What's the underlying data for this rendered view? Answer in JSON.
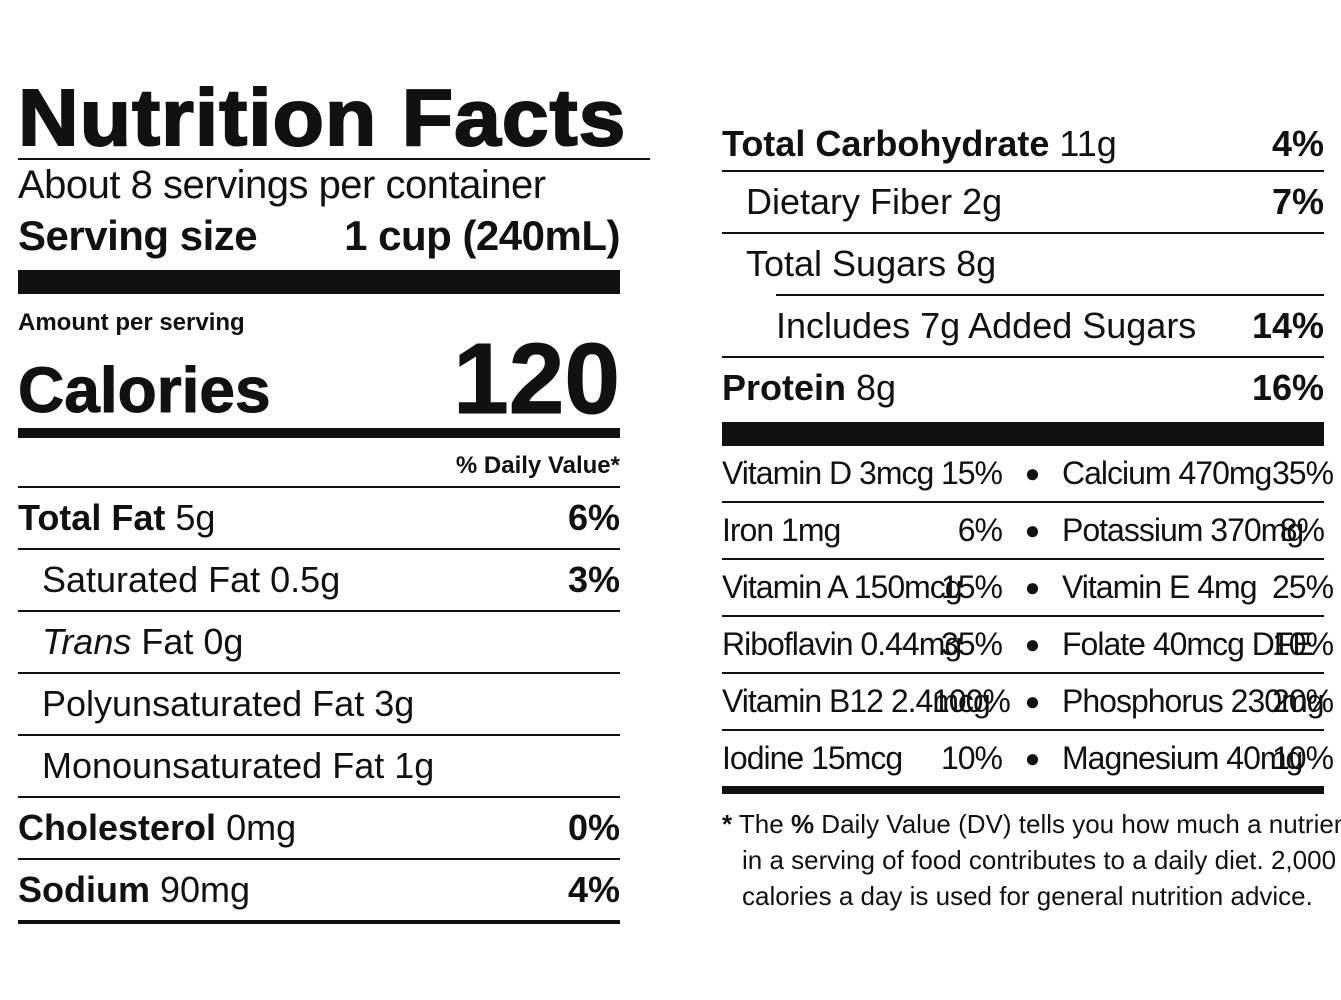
{
  "title": "Nutrition Facts",
  "servings_per_container": "About 8 servings per container",
  "serving_size": {
    "label": "Serving size",
    "value": "1 cup (240mL)"
  },
  "amount_per_serving": "Amount per serving",
  "calories": {
    "label": "Calories",
    "value": "120"
  },
  "daily_value_header": "% Daily Value*",
  "left_rows": [
    {
      "name": "Total Fat",
      "amount": "5g",
      "pct": "6%"
    },
    {
      "name": "Saturated Fat",
      "amount": "0.5g",
      "pct": "3%"
    },
    {
      "name": "Trans",
      "amount": "Fat 0g",
      "pct": ""
    },
    {
      "name": "Polyunsaturated Fat",
      "amount": "3g",
      "pct": ""
    },
    {
      "name": "Monounsaturated Fat",
      "amount": "1g",
      "pct": ""
    },
    {
      "name": "Cholesterol",
      "amount": "0mg",
      "pct": "0%"
    },
    {
      "name": "Sodium",
      "amount": "90mg",
      "pct": "4%"
    }
  ],
  "right_rows": [
    {
      "name": "Total Carbohydrate",
      "amount": "11g",
      "pct": "4%"
    },
    {
      "name": "Dietary Fiber",
      "amount": "2g",
      "pct": "7%"
    },
    {
      "name": "Total Sugars",
      "amount": "8g",
      "pct": ""
    },
    {
      "name": "Includes 7g Added Sugars",
      "amount": "",
      "pct": "14%"
    },
    {
      "name": "Protein",
      "amount": "8g",
      "pct": "16%"
    }
  ],
  "vitamins": [
    {
      "a_name": "Vitamin D 3mcg",
      "a_pct": "15%",
      "b_name": "Calcium 470mg",
      "b_pct": "35%"
    },
    {
      "a_name": "Iron 1mg",
      "a_pct": "6%",
      "b_name": "Potassium 370mg",
      "b_pct": "8%"
    },
    {
      "a_name": "Vitamin A 150mcg",
      "a_pct": "15%",
      "b_name": "Vitamin E 4mg",
      "b_pct": "25%"
    },
    {
      "a_name": "Riboflavin 0.44mg",
      "a_pct": "35%",
      "b_name": "Folate 40mcg DFE",
      "b_pct": "10%"
    },
    {
      "a_name": "Vitamin B12 2.4mcg",
      "a_pct": "100%",
      "b_name": "Phosphorus 230mg",
      "b_pct": "20%"
    },
    {
      "a_name": "Iodine 15mcg",
      "a_pct": "10%",
      "b_name": "Magnesium 40mg",
      "b_pct": "10%"
    }
  ],
  "bullet": "●",
  "footnote": {
    "star": "*",
    "lead": "The",
    "pct": "%",
    "line1_rest": "Daily Value (DV) tells you how much a nutrient",
    "line2": "in a serving of food contributes to a daily diet. 2,000",
    "line3": "calories a day is used for general nutrition advice."
  }
}
